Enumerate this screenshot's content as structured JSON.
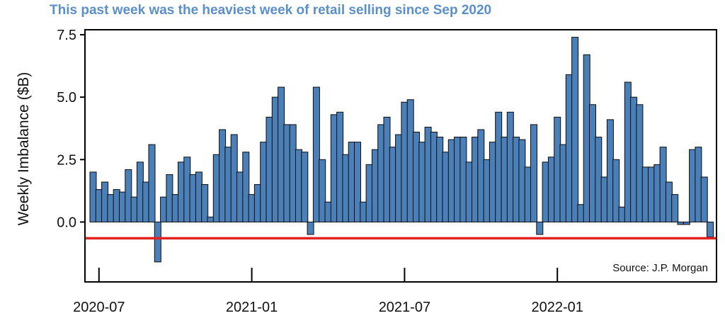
{
  "chart_data": {
    "type": "bar",
    "title": "This past week was the heaviest week of retail selling since Sep 2020",
    "ylabel": "Weekly Imbalance ($B)",
    "xlabel": "",
    "ylim": [
      -2.4,
      7.7
    ],
    "yticks": [
      "7.5",
      "5.0",
      "2.5",
      "0.0"
    ],
    "ytick_values": [
      7.5,
      5.0,
      2.5,
      0.0
    ],
    "xticks": [
      "2020-07",
      "2021-01",
      "2021-07",
      "2022-01"
    ],
    "xtick_week_index": [
      1,
      27,
      53,
      79
    ],
    "reference_line": {
      "value": -0.65,
      "color": "#e32222"
    },
    "annotation": "Source: J.P. Morgan",
    "bar_color": "#4a7fb8",
    "grid": false,
    "values": [
      2.0,
      1.3,
      1.6,
      1.1,
      1.3,
      1.2,
      2.1,
      1.0,
      2.4,
      1.6,
      3.1,
      -1.6,
      1.0,
      1.9,
      1.1,
      2.4,
      2.6,
      1.9,
      2.0,
      1.5,
      0.2,
      2.7,
      3.7,
      3.0,
      3.5,
      2.0,
      2.8,
      1.1,
      1.5,
      3.2,
      4.2,
      5.0,
      5.4,
      3.9,
      3.9,
      2.9,
      2.8,
      -0.5,
      5.4,
      2.5,
      0.8,
      4.3,
      4.4,
      2.7,
      3.2,
      3.2,
      0.8,
      2.3,
      2.9,
      3.9,
      4.2,
      3.0,
      3.5,
      4.8,
      4.9,
      3.6,
      3.2,
      3.8,
      3.6,
      3.4,
      2.8,
      3.3,
      3.4,
      3.4,
      2.4,
      3.4,
      3.7,
      2.5,
      3.2,
      4.4,
      3.4,
      4.4,
      3.4,
      3.3,
      2.2,
      3.9,
      -0.5,
      2.4,
      2.6,
      4.2,
      3.1,
      5.9,
      7.4,
      0.7,
      6.7,
      4.7,
      3.4,
      1.8,
      4.1,
      2.5,
      0.6,
      5.6,
      5.0,
      4.7,
      2.2,
      2.2,
      2.3,
      3.0,
      1.6,
      1.1,
      -0.1,
      -0.1,
      2.9,
      3.0,
      1.8,
      -0.6
    ]
  }
}
